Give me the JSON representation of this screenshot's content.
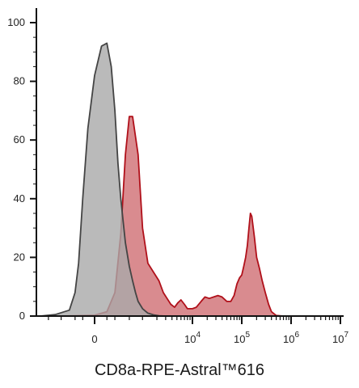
{
  "chart_data": {
    "type": "area",
    "title": "",
    "xlabel": "CD8a-RPE-Astral™616",
    "ylabel": "",
    "ylim": [
      0,
      100
    ],
    "y_ticks": [
      0,
      20,
      40,
      60,
      80,
      100
    ],
    "x_scale": "biexponential",
    "x_ticks": [
      {
        "value": 0,
        "base": "0",
        "exp": ""
      },
      {
        "value": 10000,
        "base": "10",
        "exp": "4"
      },
      {
        "value": 100000,
        "base": "10",
        "exp": "5"
      },
      {
        "value": 1000000,
        "base": "10",
        "exp": "6"
      },
      {
        "value": 10000000,
        "base": "10",
        "exp": "7"
      }
    ],
    "grid": false,
    "series": [
      {
        "color": "#b0101a",
        "fill": "#d98b8f",
        "x": [
          -1500,
          -500,
          0,
          100,
          200,
          300,
          400,
          500,
          600,
          800,
          1000,
          1300,
          1700,
          2200,
          2700,
          3200,
          3800,
          4500,
          5200,
          6000,
          7000,
          8000,
          9000,
          10000,
          12000,
          15000,
          18000,
          22000,
          27000,
          33000,
          40000,
          50000,
          60000,
          70000,
          80000,
          90000,
          100000,
          110000,
          120000,
          130000,
          140000,
          150000,
          160000,
          180000,
          200000,
          230000,
          260000,
          300000,
          350000,
          400000,
          500000,
          700000,
          1000000,
          10000000
        ],
        "y": [
          0,
          0,
          0.3,
          1.5,
          8,
          28,
          55,
          68,
          68,
          55,
          30,
          18,
          15,
          12,
          8,
          6,
          4,
          3,
          4.5,
          5.5,
          4,
          2.5,
          2.5,
          2.5,
          3,
          5,
          6.5,
          6,
          6.5,
          7,
          6.5,
          5,
          5,
          7,
          11,
          13,
          14,
          17,
          20,
          24,
          30,
          35,
          34,
          27,
          20,
          16,
          12,
          8,
          4,
          1.5,
          0.2,
          0,
          0,
          0
        ]
      },
      {
        "color": "#444444",
        "fill": "#a9a9a9",
        "x": [
          -1500,
          -700,
          -300,
          -200,
          -150,
          -100,
          -50,
          0,
          50,
          100,
          150,
          200,
          250,
          300,
          350,
          400,
          500,
          600,
          700,
          800,
          1000,
          1300,
          1700,
          2200,
          3000,
          10000000
        ],
        "y": [
          0,
          0.5,
          2,
          8,
          18,
          40,
          64,
          82,
          92,
          93,
          85,
          70,
          52,
          40,
          32,
          25,
          17,
          12,
          8,
          5,
          2.5,
          1,
          0.4,
          0.1,
          0,
          0
        ]
      }
    ]
  }
}
